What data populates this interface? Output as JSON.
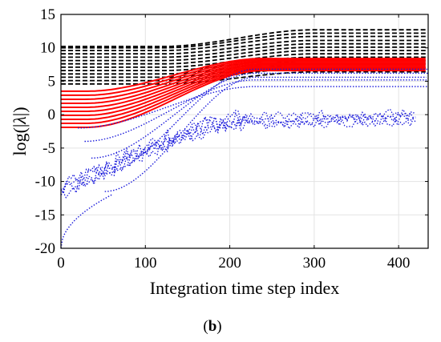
{
  "chart_data": {
    "type": "line",
    "title": "",
    "xlabel": "Integration time step index",
    "ylabel_prefix": "log(|",
    "ylabel_symbol": "λ",
    "ylabel_suffix": "|)",
    "caption_open": "(",
    "caption_letter": "b",
    "caption_close": ")",
    "xlim": [
      0,
      435
    ],
    "ylim": [
      -20,
      15
    ],
    "x_ticks": [
      0,
      100,
      200,
      300,
      400
    ],
    "y_ticks": [
      -20,
      -15,
      -10,
      -5,
      0,
      5,
      10,
      15
    ],
    "grid": true,
    "colors": {
      "black": "#000000",
      "red": "#ff0000",
      "blue": "#1a1adb",
      "grid": "#e3e3e3"
    },
    "series_groups": [
      {
        "color": "black",
        "style": "dashed",
        "curves": [
          {
            "y0": 4.6,
            "y1": 6.4
          },
          {
            "y0": 5.1,
            "y1": 7.0
          },
          {
            "y0": 5.6,
            "y1": 7.6
          },
          {
            "y0": 6.1,
            "y1": 8.1
          },
          {
            "y0": 6.6,
            "y1": 8.6
          },
          {
            "y0": 7.1,
            "y1": 9.1
          },
          {
            "y0": 7.6,
            "y1": 9.6
          },
          {
            "y0": 8.1,
            "y1": 10.1
          },
          {
            "y0": 8.6,
            "y1": 10.6
          },
          {
            "y0": 9.1,
            "y1": 11.1
          },
          {
            "y0": 9.6,
            "y1": 11.7
          },
          {
            "y0": 10.0,
            "y1": 12.2
          },
          {
            "y0": 10.2,
            "y1": 12.7
          }
        ]
      },
      {
        "color": "red",
        "style": "solid",
        "curves": [
          {
            "y0": -1.9,
            "y1": 6.6
          },
          {
            "y0": -1.3,
            "y1": 6.8
          },
          {
            "y0": -0.7,
            "y1": 7.0
          },
          {
            "y0": -0.1,
            "y1": 7.2
          },
          {
            "y0": 0.5,
            "y1": 7.4
          },
          {
            "y0": 1.1,
            "y1": 7.6
          },
          {
            "y0": 1.7,
            "y1": 7.8
          },
          {
            "y0": 2.3,
            "y1": 8.0
          },
          {
            "y0": 2.9,
            "y1": 8.2
          },
          {
            "y0": 3.5,
            "y1": 8.4
          }
        ]
      },
      {
        "color": "blue",
        "style": "dotted",
        "upper_curves": [
          {
            "y0": -2.0,
            "y1": 4.2
          },
          {
            "y0": -4.0,
            "y1": 5.2
          },
          {
            "y0": -6.5,
            "y1": 6.2
          },
          {
            "y0": -9.0,
            "y1": 6.8
          },
          {
            "y0": -11.5,
            "y1": 5.6
          }
        ],
        "lower_band": {
          "y0": -12.0,
          "y_mid": -4.5,
          "y_end": -1.0
        },
        "transient_start": -20.0
      }
    ]
  }
}
